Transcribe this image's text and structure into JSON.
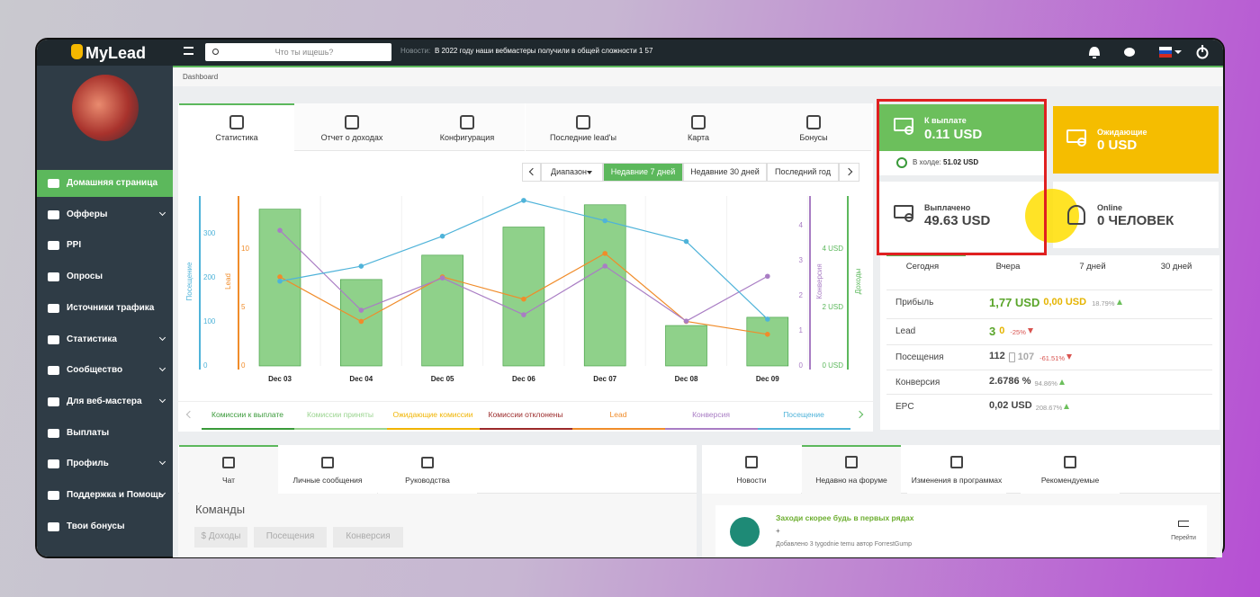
{
  "topbar": {
    "logo": "MyLead",
    "search_placeholder": "Что ты ищешь?",
    "news_label": "Новости:",
    "news_text": "В 2022 году наши вебмастеры получили в общей сложности 1 57"
  },
  "sidebar": {
    "menu": [
      {
        "label": "Домашняя страница",
        "active": true
      },
      {
        "label": "Офферы",
        "submenu": true
      },
      {
        "label": "PPI"
      },
      {
        "label": "Опросы"
      },
      {
        "label": "Источники трафика"
      },
      {
        "label": "Статистика",
        "submenu": true
      },
      {
        "label": "Сообщество",
        "submenu": true
      },
      {
        "label": "Для веб-мастера",
        "submenu": true
      },
      {
        "label": "Выплаты"
      },
      {
        "label": "Профиль",
        "submenu": true
      },
      {
        "label": "Поддержка и Помощь",
        "submenu": true
      },
      {
        "label": "Твои бонусы"
      }
    ]
  },
  "breadcrumb": "Dashboard",
  "tabs": {
    "items": [
      "Статистика",
      "Отчет о доходах",
      "Конфигурация",
      "Последние lead'ы",
      "Карта",
      "Бонусы"
    ],
    "active": 0
  },
  "range": {
    "label": "Диапазон",
    "options": [
      "Недавние 7 дней",
      "Недавние 30 дней",
      "Последний год"
    ],
    "active": 0
  },
  "chart": {
    "type": "bar-line",
    "categories": [
      "Dec 03",
      "Dec 04",
      "Dec 05",
      "Dec 06",
      "Dec 07",
      "Dec 08",
      "Dec 09"
    ],
    "axes": {
      "visits": {
        "title": "Посещение",
        "color": "#4fb3d9",
        "ylim": [
          0,
          385
        ],
        "yticks": [
          0,
          100,
          200,
          300
        ]
      },
      "lead": {
        "title": "Lead",
        "color": "#f08c2a",
        "ylim": [
          0,
          14.5
        ],
        "yticks": [
          0,
          5,
          10
        ]
      },
      "conversion": {
        "title": "Конверсия",
        "color": "#a97dc4",
        "ylim": [
          0,
          4.85
        ],
        "yticks": [
          0,
          1,
          2,
          3,
          4
        ]
      },
      "income": {
        "title": "Доходы",
        "color": "#5cb85c",
        "ylim": [
          0,
          5.8
        ],
        "yticks": [
          {
            "value": 0,
            "label": "0 USD"
          },
          {
            "value": 2,
            "label": "2 USD"
          },
          {
            "value": 4,
            "label": "4 USD"
          }
        ]
      }
    },
    "series": [
      {
        "name": "Комиссии к выплате",
        "color": "#3a9a3a",
        "kind": "bar",
        "axis": "income",
        "values": [
          5.35,
          2.95,
          3.78,
          4.74,
          5.5,
          1.38,
          1.66
        ]
      },
      {
        "name": "Комиссии приняты",
        "color": "#9ad48f",
        "kind": "bar",
        "axis": "income",
        "values": [
          0,
          0,
          0,
          0,
          0,
          0,
          0
        ]
      },
      {
        "name": "Ожидающие комиссии",
        "color": "#f0b400",
        "kind": "bar",
        "axis": "income",
        "values": [
          0,
          0,
          0,
          0,
          0,
          0,
          0
        ]
      },
      {
        "name": "Комиссии отклонены",
        "color": "#9b2a2a",
        "kind": "bar",
        "axis": "income",
        "values": [
          0,
          0,
          0,
          0,
          0,
          0,
          0
        ]
      },
      {
        "name": "Lead",
        "color": "#f08c2a",
        "kind": "line",
        "axis": "lead",
        "values": [
          7.6,
          3.8,
          7.6,
          5.7,
          9.6,
          3.8,
          2.7
        ]
      },
      {
        "name": "Конверсия",
        "color": "#a97dc4",
        "kind": "line",
        "axis": "conversion",
        "values": [
          3.87,
          1.59,
          2.51,
          1.46,
          2.85,
          1.28,
          2.56
        ]
      },
      {
        "name": "Посещение",
        "color": "#4fb3d9",
        "kind": "line",
        "axis": "visits",
        "values": [
          192,
          226,
          294,
          375,
          329,
          282,
          106
        ]
      }
    ]
  },
  "cards": {
    "payout": {
      "label": "К выплате",
      "value": "0.11 USD",
      "hold_label": "В холде:",
      "hold_value": "51.02 USD"
    },
    "pending": {
      "label": "Ожидающие",
      "value": "0 USD"
    },
    "paid": {
      "label": "Выплачено",
      "value": "49.63 USD"
    },
    "online": {
      "label": "Online",
      "value": "0 ЧЕЛОВЕК"
    }
  },
  "stats": {
    "tabs": [
      "Сегодня",
      "Вчера",
      "7 дней",
      "30 дней"
    ],
    "active": 0,
    "rows": [
      {
        "label": "Прибыль",
        "value": "1,77 USD",
        "secondary": "0,00 USD",
        "change": "18.79%",
        "trend": "up"
      },
      {
        "label": "Lead",
        "value": "3",
        "secondary": "0",
        "change": "-25%",
        "trend": "down"
      },
      {
        "label": "Посещения",
        "value": "112",
        "secondary": "107",
        "change": "-61.51%",
        "trend": "down"
      },
      {
        "label": "Конверсия",
        "value": "2.6786 %",
        "change": "94.86%",
        "trend": "up"
      },
      {
        "label": "EPC",
        "value": "0,02 USD",
        "change": "208.67%",
        "trend": "up"
      }
    ]
  },
  "bottom_left": {
    "tabs": [
      "Чат",
      "Личные сообщения",
      "Руководства"
    ],
    "active": 0,
    "title": "Команды",
    "buttons": [
      "$ Доходы",
      "Посещения",
      "Конверсия"
    ]
  },
  "bottom_right": {
    "tabs": [
      "Новости",
      "Недавно на форуме",
      "Изменения в программах",
      "Рекомендуемые"
    ],
    "active": 1,
    "post": {
      "title": "Заходи скорее будь в первых рядах",
      "body": "+",
      "meta": "Добавлено 3 tygodnie temu автор ForrestGump",
      "action": "Перейти"
    }
  }
}
